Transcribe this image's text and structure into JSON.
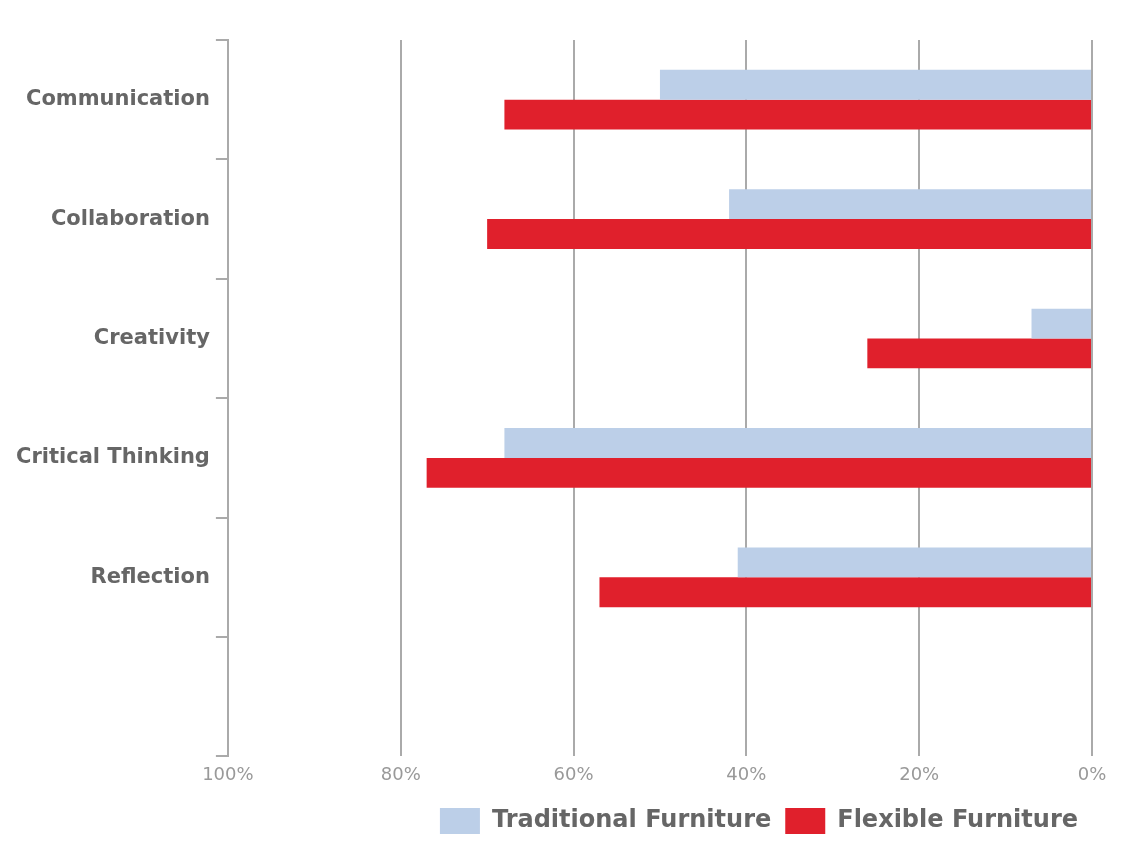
{
  "chart_data": {
    "type": "bar",
    "orientation": "horizontal",
    "categories": [
      "Communication",
      "Collaboration",
      "Creativity",
      "Critical Thinking",
      "Reflection",
      null
    ],
    "series": [
      {
        "name": "Traditional Furniture",
        "color": "#bccfe8",
        "values": [
          50,
          42,
          7,
          68,
          41,
          null
        ]
      },
      {
        "name": "Flexible Furniture",
        "color": "#e0202c",
        "values": [
          68,
          70,
          26,
          77,
          57,
          null
        ]
      }
    ],
    "xlim": [
      100,
      0
    ],
    "xticks": [
      {
        "value": 100,
        "label": "100%"
      },
      {
        "value": 80,
        "label": "80%"
      },
      {
        "value": 60,
        "label": "60%"
      },
      {
        "value": 40,
        "label": "40%"
      },
      {
        "value": 20,
        "label": "20%"
      },
      {
        "value": 0,
        "label": "0%"
      }
    ],
    "grid": "x",
    "legend": "bottom right"
  }
}
